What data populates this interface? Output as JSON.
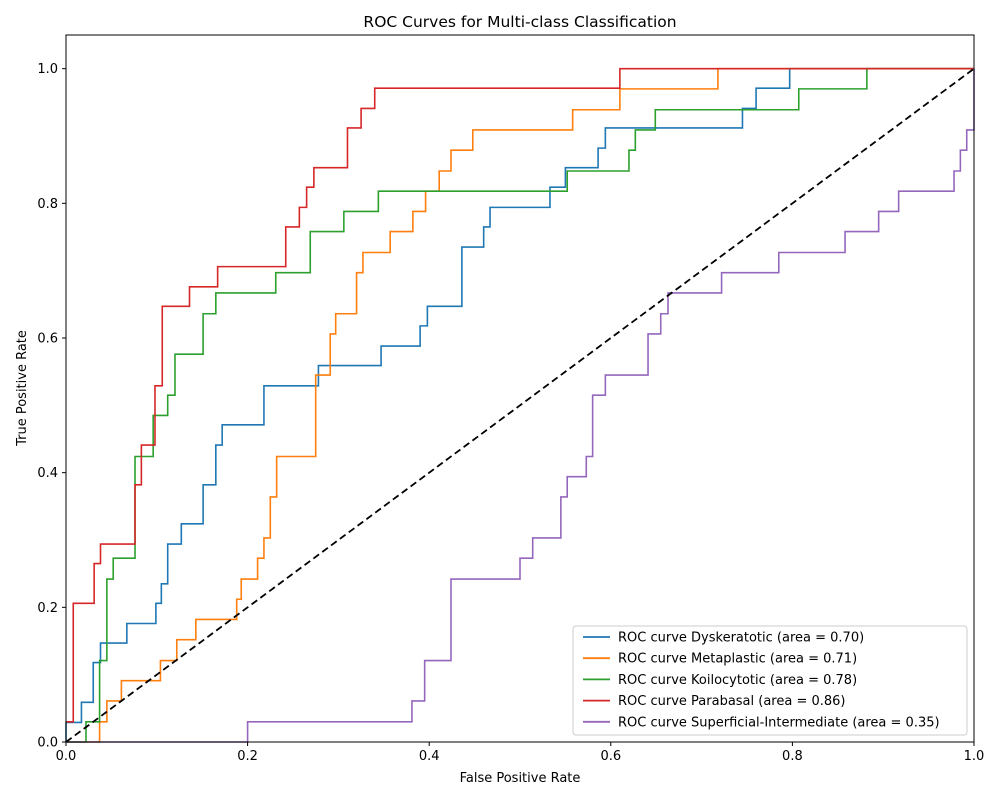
{
  "chart_data": {
    "type": "line",
    "title": "ROC Curves for Multi-class Classification",
    "xlabel": "False Positive Rate",
    "ylabel": "True Positive Rate",
    "xlim": [
      0.0,
      1.0
    ],
    "ylim": [
      0.0,
      1.05
    ],
    "xticks": [
      "0.0",
      "0.2",
      "0.4",
      "0.6",
      "0.8",
      "1.0"
    ],
    "yticks": [
      "0.0",
      "0.2",
      "0.4",
      "0.6",
      "0.8",
      "1.0"
    ],
    "grid": false,
    "legend_position": "lower-right",
    "diagonal": {
      "style": "dashed",
      "color": "#000000",
      "x": [
        0,
        1
      ],
      "y": [
        0,
        1
      ]
    },
    "series": [
      {
        "name": "ROC curve Dyskeratotic (area = 0.70)",
        "color": "#1f77b4",
        "x": [
          0.0,
          0.0,
          0.017,
          0.017,
          0.03,
          0.03,
          0.038,
          0.038,
          0.067,
          0.067,
          0.099,
          0.099,
          0.105,
          0.105,
          0.112,
          0.112,
          0.127,
          0.127,
          0.151,
          0.151,
          0.165,
          0.165,
          0.172,
          0.172,
          0.218,
          0.218,
          0.278,
          0.278,
          0.347,
          0.347,
          0.355,
          0.355,
          0.39,
          0.39,
          0.398,
          0.398,
          0.436,
          0.436,
          0.46,
          0.46,
          0.467,
          0.467,
          0.533,
          0.533,
          0.55,
          0.55,
          0.586,
          0.586,
          0.594,
          0.594,
          0.745,
          0.745,
          0.76,
          0.76,
          0.797,
          0.797,
          1.0
        ],
        "y": [
          0.0,
          0.029,
          0.029,
          0.059,
          0.059,
          0.118,
          0.118,
          0.147,
          0.147,
          0.176,
          0.176,
          0.206,
          0.206,
          0.235,
          0.235,
          0.294,
          0.294,
          0.324,
          0.324,
          0.382,
          0.382,
          0.441,
          0.441,
          0.471,
          0.471,
          0.529,
          0.529,
          0.559,
          0.559,
          0.588,
          0.588,
          0.588,
          0.588,
          0.618,
          0.618,
          0.647,
          0.647,
          0.735,
          0.735,
          0.765,
          0.765,
          0.794,
          0.794,
          0.824,
          0.824,
          0.853,
          0.853,
          0.882,
          0.882,
          0.912,
          0.912,
          0.941,
          0.941,
          0.971,
          0.971,
          1.0,
          1.0
        ]
      },
      {
        "name": "ROC curve Metaplastic (area = 0.71)",
        "color": "#ff7f0e",
        "x": [
          0.0,
          0.037,
          0.037,
          0.045,
          0.045,
          0.061,
          0.061,
          0.104,
          0.104,
          0.122,
          0.122,
          0.143,
          0.143,
          0.188,
          0.188,
          0.193,
          0.193,
          0.211,
          0.211,
          0.218,
          0.218,
          0.225,
          0.225,
          0.232,
          0.232,
          0.275,
          0.275,
          0.291,
          0.291,
          0.297,
          0.297,
          0.32,
          0.32,
          0.327,
          0.327,
          0.357,
          0.357,
          0.382,
          0.382,
          0.396,
          0.396,
          0.411,
          0.411,
          0.424,
          0.424,
          0.448,
          0.448,
          0.558,
          0.558,
          0.61,
          0.61,
          0.718,
          0.718,
          1.0
        ],
        "y": [
          0.0,
          0.0,
          0.03,
          0.03,
          0.061,
          0.061,
          0.091,
          0.091,
          0.121,
          0.121,
          0.152,
          0.152,
          0.182,
          0.182,
          0.212,
          0.212,
          0.242,
          0.242,
          0.273,
          0.273,
          0.303,
          0.303,
          0.364,
          0.364,
          0.424,
          0.424,
          0.545,
          0.545,
          0.606,
          0.606,
          0.636,
          0.636,
          0.697,
          0.697,
          0.727,
          0.727,
          0.758,
          0.758,
          0.788,
          0.788,
          0.818,
          0.818,
          0.848,
          0.848,
          0.879,
          0.879,
          0.909,
          0.909,
          0.939,
          0.939,
          0.97,
          0.97,
          1.0,
          1.0
        ]
      },
      {
        "name": "ROC curve Koilocytotic (area = 0.78)",
        "color": "#2ca02c",
        "x": [
          0.0,
          0.022,
          0.022,
          0.037,
          0.037,
          0.045,
          0.045,
          0.052,
          0.052,
          0.076,
          0.076,
          0.096,
          0.096,
          0.112,
          0.112,
          0.12,
          0.12,
          0.151,
          0.151,
          0.165,
          0.165,
          0.231,
          0.231,
          0.269,
          0.269,
          0.306,
          0.306,
          0.344,
          0.344,
          0.552,
          0.552,
          0.62,
          0.62,
          0.627,
          0.627,
          0.649,
          0.649,
          0.807,
          0.807,
          0.882,
          0.882,
          1.0
        ],
        "y": [
          0.0,
          0.0,
          0.03,
          0.03,
          0.121,
          0.121,
          0.242,
          0.242,
          0.273,
          0.273,
          0.424,
          0.424,
          0.485,
          0.485,
          0.515,
          0.515,
          0.576,
          0.576,
          0.636,
          0.636,
          0.667,
          0.667,
          0.697,
          0.697,
          0.758,
          0.758,
          0.788,
          0.788,
          0.818,
          0.818,
          0.848,
          0.848,
          0.879,
          0.879,
          0.909,
          0.909,
          0.939,
          0.939,
          0.97,
          0.97,
          1.0,
          1.0
        ]
      },
      {
        "name": "ROC curve Parabasal (area = 0.86)",
        "color": "#d62728",
        "x": [
          0.0,
          0.008,
          0.008,
          0.031,
          0.031,
          0.038,
          0.038,
          0.076,
          0.076,
          0.083,
          0.083,
          0.098,
          0.098,
          0.106,
          0.106,
          0.136,
          0.136,
          0.167,
          0.167,
          0.242,
          0.242,
          0.257,
          0.257,
          0.265,
          0.265,
          0.273,
          0.273,
          0.31,
          0.31,
          0.325,
          0.325,
          0.34,
          0.34,
          0.61,
          0.61,
          1.0
        ],
        "y": [
          0.03,
          0.03,
          0.206,
          0.206,
          0.265,
          0.265,
          0.294,
          0.294,
          0.382,
          0.382,
          0.441,
          0.441,
          0.529,
          0.529,
          0.647,
          0.647,
          0.676,
          0.676,
          0.706,
          0.706,
          0.765,
          0.765,
          0.794,
          0.794,
          0.824,
          0.824,
          0.853,
          0.853,
          0.912,
          0.912,
          0.941,
          0.941,
          0.971,
          0.971,
          1.0,
          1.0
        ]
      },
      {
        "name": "ROC curve Superficial-Intermediate (area = 0.35)",
        "color": "#9467bd",
        "x": [
          0.0,
          0.2,
          0.2,
          0.381,
          0.381,
          0.395,
          0.395,
          0.424,
          0.424,
          0.5,
          0.5,
          0.514,
          0.514,
          0.545,
          0.545,
          0.552,
          0.552,
          0.573,
          0.573,
          0.58,
          0.58,
          0.594,
          0.594,
          0.641,
          0.641,
          0.655,
          0.655,
          0.663,
          0.663,
          0.722,
          0.722,
          0.785,
          0.785,
          0.858,
          0.858,
          0.895,
          0.895,
          0.917,
          0.917,
          0.978,
          0.978,
          0.985,
          0.985,
          0.992,
          0.992,
          1.0,
          1.0
        ],
        "y": [
          0.0,
          0.0,
          0.03,
          0.03,
          0.061,
          0.061,
          0.121,
          0.121,
          0.242,
          0.242,
          0.273,
          0.273,
          0.303,
          0.303,
          0.364,
          0.364,
          0.394,
          0.394,
          0.424,
          0.424,
          0.515,
          0.515,
          0.545,
          0.545,
          0.606,
          0.606,
          0.636,
          0.636,
          0.667,
          0.667,
          0.697,
          0.697,
          0.727,
          0.727,
          0.758,
          0.758,
          0.788,
          0.788,
          0.818,
          0.818,
          0.848,
          0.848,
          0.879,
          0.879,
          0.909,
          0.909,
          1.0
        ]
      }
    ]
  }
}
